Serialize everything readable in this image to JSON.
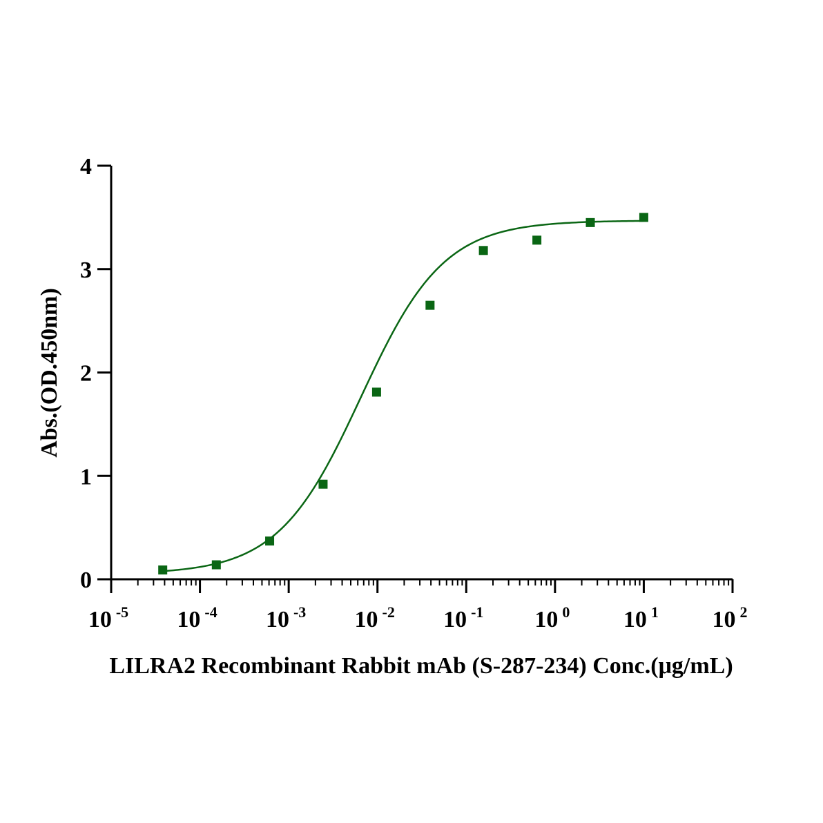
{
  "chart_data": {
    "type": "scatter",
    "xscale": "log",
    "xlim": [
      1e-05,
      100
    ],
    "ylim": [
      0,
      4
    ],
    "xlabel": "LILRA2 Recombinant Rabbit mAb (S-287-234)  Conc.(μg/mL)",
    "ylabel": "Abs.(OD.450nm)",
    "y_ticks": [
      "0",
      "1",
      "2",
      "3",
      "4"
    ],
    "x_ticks": [
      {
        "base": "10",
        "exp": "-5"
      },
      {
        "base": "10",
        "exp": "-4"
      },
      {
        "base": "10",
        "exp": "-3"
      },
      {
        "base": "10",
        "exp": "-2"
      },
      {
        "base": "10",
        "exp": "-1"
      },
      {
        "base": "10",
        "exp": "0"
      },
      {
        "base": "10",
        "exp": "1"
      },
      {
        "base": "10",
        "exp": "2"
      }
    ],
    "series": [
      {
        "x": [
          3.81e-05,
          0.000153,
          0.00061,
          0.00244,
          0.00977,
          0.0391,
          0.156,
          0.625,
          2.5,
          10
        ],
        "y": [
          0.09,
          0.14,
          0.37,
          0.92,
          1.81,
          2.65,
          3.18,
          3.28,
          3.45,
          3.5
        ],
        "marker": "square",
        "fit": "four-parameter logistic",
        "fit_params": {
          "bottom": 0.05,
          "top": 3.47,
          "ec50": 0.0065,
          "hill": 0.93
        }
      }
    ],
    "color": "#0a6614",
    "grid": false,
    "legend": "none"
  }
}
